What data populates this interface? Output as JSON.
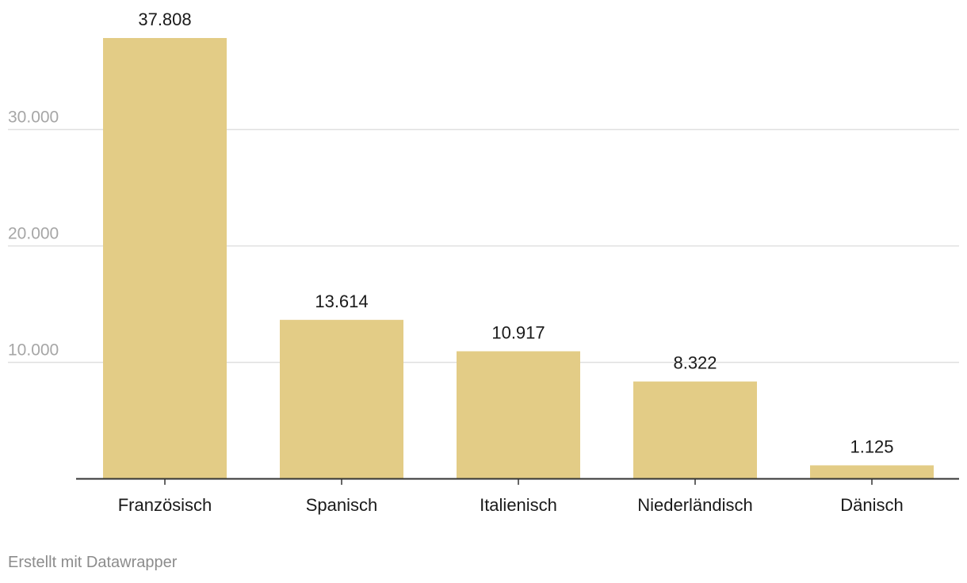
{
  "chart_data": {
    "type": "bar",
    "categories": [
      "Französisch",
      "Spanisch",
      "Italienisch",
      "Niederländisch",
      "Dänisch"
    ],
    "values": [
      37808,
      13614,
      10917,
      8322,
      1125
    ],
    "value_labels": [
      "37.808",
      "13.614",
      "10.917",
      "8.322",
      "1.125"
    ],
    "ylim": [
      0,
      37808
    ],
    "yticks": [
      10000,
      20000,
      30000
    ],
    "ytick_labels": [
      "10.000",
      "20.000",
      "30.000"
    ],
    "grid": true,
    "bar_color": "#e3cc86",
    "grid_color": "#e0e0e0",
    "axis_color": "#333333",
    "tick_label_color": "#a6a6a6",
    "label_color": "#1a1a1a"
  },
  "footer": {
    "credit": "Erstellt mit Datawrapper"
  }
}
